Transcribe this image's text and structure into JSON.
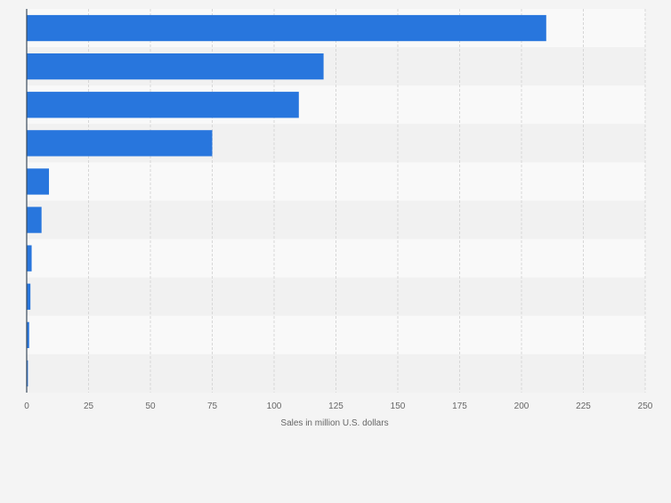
{
  "chart_data": {
    "type": "bar",
    "orientation": "horizontal",
    "title": "",
    "xlabel": "Sales in million U.S. dollars",
    "ylabel": "",
    "xlim": [
      0,
      250
    ],
    "x_ticks": [
      "0",
      "25",
      "50",
      "75",
      "100",
      "125",
      "150",
      "175",
      "200",
      "225",
      "250"
    ],
    "categories": [
      "",
      "",
      "",
      "",
      "",
      "",
      "",
      "",
      "",
      ""
    ],
    "values": [
      210,
      120,
      110,
      75,
      9,
      6,
      2,
      1.5,
      1,
      0.5
    ],
    "grid": true,
    "colors": {
      "bar": "#2876dd",
      "band_light": "#f9f9f9",
      "band_dark": "#f1f1f1",
      "grid": "#d7d7d7",
      "axis": "#3b4a5c",
      "tick_text": "#666666"
    }
  }
}
